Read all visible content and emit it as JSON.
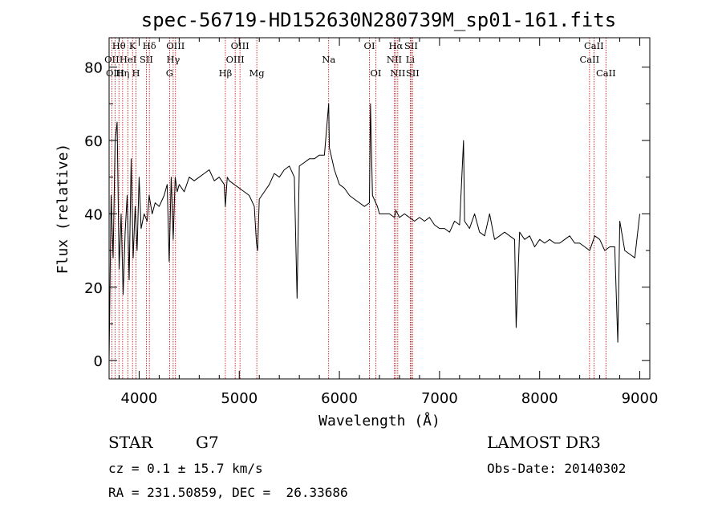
{
  "chart_data": {
    "type": "line",
    "title": "spec-56719-HD152630N280739M_sp01-161.fits",
    "xlabel": "Wavelength (Å)",
    "ylabel": "Flux (relative)",
    "xlim": [
      3700,
      9100
    ],
    "ylim": [
      -5,
      88
    ],
    "xticks": [
      4000,
      5000,
      6000,
      7000,
      8000,
      9000
    ],
    "yticks": [
      0,
      20,
      40,
      60,
      80
    ],
    "grid": false,
    "series": [
      {
        "values_x": [
          3700,
          3720,
          3740,
          3760,
          3780,
          3800,
          3820,
          3840,
          3860,
          3880,
          3900,
          3920,
          3940,
          3960,
          3980,
          4000,
          4020,
          4050,
          4080,
          4100,
          4130,
          4160,
          4200,
          4250,
          4280,
          4300,
          4320,
          4340,
          4360,
          4380,
          4400,
          4450,
          4500,
          4550,
          4600,
          4650,
          4700,
          4750,
          4800,
          4850,
          4861,
          4880,
          4900,
          4950,
          5000,
          5050,
          5100,
          5150,
          5172,
          5183,
          5200,
          5250,
          5300,
          5350,
          5400,
          5450,
          5500,
          5550,
          5577,
          5600,
          5650,
          5700,
          5750,
          5800,
          5850,
          5893,
          5900,
          5950,
          6000,
          6050,
          6100,
          6150,
          6200,
          6250,
          6300,
          6310,
          6330,
          6380,
          6400,
          6450,
          6500,
          6550,
          6563,
          6600,
          6650,
          6700,
          6750,
          6800,
          6850,
          6900,
          6950,
          7000,
          7050,
          7100,
          7150,
          7200,
          7240,
          7250,
          7300,
          7350,
          7400,
          7450,
          7500,
          7550,
          7600,
          7650,
          7700,
          7750,
          7765,
          7800,
          7850,
          7900,
          7950,
          8000,
          8050,
          8100,
          8150,
          8200,
          8250,
          8300,
          8350,
          8400,
          8450,
          8500,
          8550,
          8600,
          8650,
          8700,
          8750,
          8780,
          8800,
          8850,
          8900,
          8950,
          9000
        ],
        "values_y": [
          0,
          45,
          28,
          60,
          65,
          25,
          40,
          18,
          35,
          45,
          22,
          55,
          28,
          42,
          30,
          50,
          36,
          40,
          38,
          45,
          40,
          43,
          42,
          45,
          48,
          27,
          50,
          33,
          50,
          46,
          48,
          46,
          50,
          49,
          50,
          51,
          52,
          49,
          50,
          48,
          42,
          50,
          49,
          48,
          47,
          46,
          45,
          42,
          32,
          30,
          44,
          46,
          48,
          51,
          50,
          52,
          53,
          50,
          17,
          53,
          54,
          55,
          55,
          56,
          56,
          70,
          58,
          52,
          48,
          47,
          45,
          44,
          43,
          42,
          43,
          70,
          45,
          42,
          40,
          40,
          40,
          39,
          41,
          39,
          40,
          39,
          38,
          39,
          38,
          39,
          37,
          36,
          36,
          35,
          38,
          37,
          60,
          38,
          36,
          40,
          35,
          34,
          40,
          33,
          34,
          35,
          34,
          33,
          9,
          35,
          33,
          34,
          31,
          33,
          32,
          33,
          32,
          32,
          33,
          34,
          32,
          32,
          31,
          30,
          34,
          33,
          30,
          31,
          31,
          5,
          38,
          30,
          29,
          28,
          40
        ],
        "name": ""
      }
    ],
    "line_labels": [
      {
        "text": "Hθ",
        "x": 3798,
        "row": 0
      },
      {
        "text": "OII",
        "x": 3727,
        "row": 1
      },
      {
        "text": "OIII",
        "x": 3760,
        "row": 2
      },
      {
        "text": "K",
        "x": 3934,
        "row": 0
      },
      {
        "text": "HeI",
        "x": 3889,
        "row": 1
      },
      {
        "text": "Hη",
        "x": 3835,
        "row": 2
      },
      {
        "text": "H",
        "x": 3969,
        "row": 2
      },
      {
        "text": "Hδ",
        "x": 4102,
        "row": 0
      },
      {
        "text": "SII",
        "x": 4072,
        "row": 1
      },
      {
        "text": "OIII",
        "x": 4363,
        "row": 0
      },
      {
        "text": "Hγ",
        "x": 4340,
        "row": 1
      },
      {
        "text": "G",
        "x": 4304,
        "row": 2
      },
      {
        "text": "OIII",
        "x": 5007,
        "row": 0
      },
      {
        "text": "OIII",
        "x": 4959,
        "row": 1
      },
      {
        "text": "Hβ",
        "x": 4861,
        "row": 2
      },
      {
        "text": "Mg",
        "x": 5175,
        "row": 2
      },
      {
        "text": "Na",
        "x": 5893,
        "row": 1
      },
      {
        "text": "OI",
        "x": 6300,
        "row": 0
      },
      {
        "text": "OI",
        "x": 6364,
        "row": 2
      },
      {
        "text": "Hα",
        "x": 6563,
        "row": 0
      },
      {
        "text": "SII",
        "x": 6716,
        "row": 0
      },
      {
        "text": "NII",
        "x": 6548,
        "row": 1
      },
      {
        "text": "Li",
        "x": 6708,
        "row": 1
      },
      {
        "text": "NII",
        "x": 6583,
        "row": 2
      },
      {
        "text": "SII",
        "x": 6731,
        "row": 2
      },
      {
        "text": "CaII",
        "x": 8542,
        "row": 0
      },
      {
        "text": "CaII",
        "x": 8498,
        "row": 1
      },
      {
        "text": "CaII",
        "x": 8662,
        "row": 2
      }
    ],
    "line_markers": [
      3727,
      3760,
      3798,
      3835,
      3889,
      3934,
      3969,
      4072,
      4102,
      4304,
      4340,
      4363,
      4861,
      4959,
      5007,
      5175,
      5893,
      6300,
      6364,
      6548,
      6563,
      6583,
      6708,
      6716,
      6731,
      8498,
      8542,
      8662
    ],
    "marker_color": "#cc0000",
    "line_color": "#000000"
  },
  "footer": {
    "object_class": "STAR",
    "subclass": "G7",
    "survey": "LAMOST DR3",
    "cz": "cz = 0.1 ± 15.7 km/s",
    "obs_date": "Obs-Date: 20140302",
    "coords": "RA = 231.50859, DEC =  26.33686"
  }
}
